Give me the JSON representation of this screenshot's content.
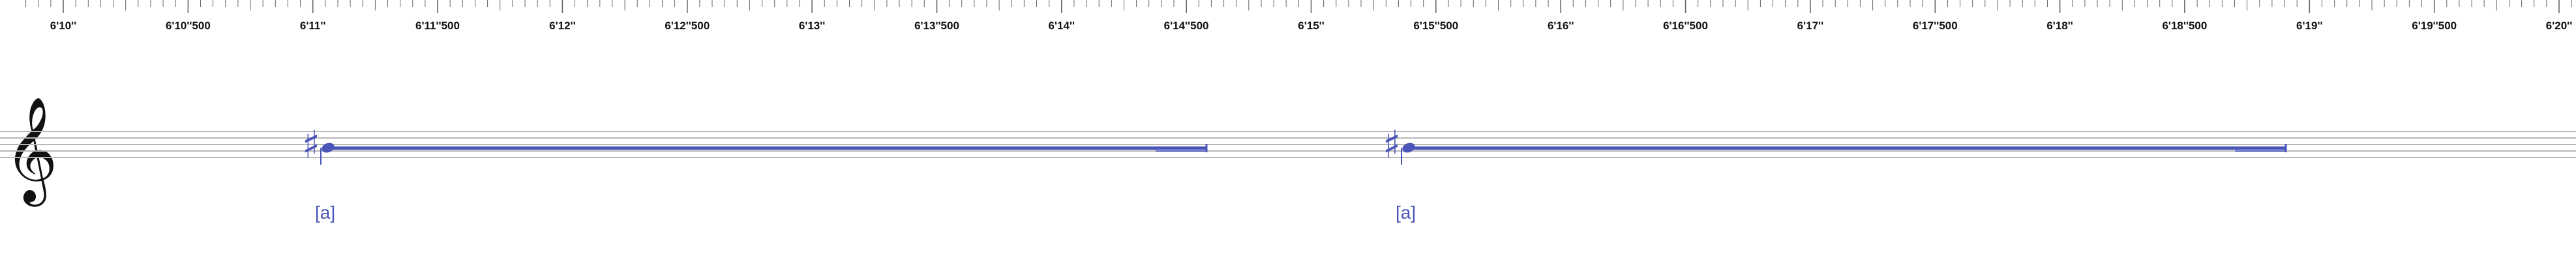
{
  "ruler": {
    "labels": [
      "6'10''",
      "6'10''500",
      "6'11''",
      "6'11''500",
      "6'12''",
      "6'12''500",
      "6'13''",
      "6'13''500",
      "6'14''",
      "6'14''500",
      "6'15''",
      "6'15''500",
      "6'16''",
      "6'16''500",
      "6'17''",
      "6'17''500",
      "6'18''",
      "6'18''500",
      "6'19''",
      "6'19''500",
      "6'20''"
    ]
  },
  "staff": {
    "clef": "treble-clef",
    "clef_glyph": "𝄞",
    "notes": [
      {
        "pitch_label": "[a]",
        "accidental": "♯",
        "accidental_icon": "sharp-icon"
      },
      {
        "pitch_label": "[a]",
        "accidental": "♯",
        "accidental_icon": "sharp-icon"
      }
    ]
  },
  "colors": {
    "note": "#4a55b8",
    "staff_line": "#b8b8b8",
    "tick": "#666666",
    "text": "#111111"
  }
}
